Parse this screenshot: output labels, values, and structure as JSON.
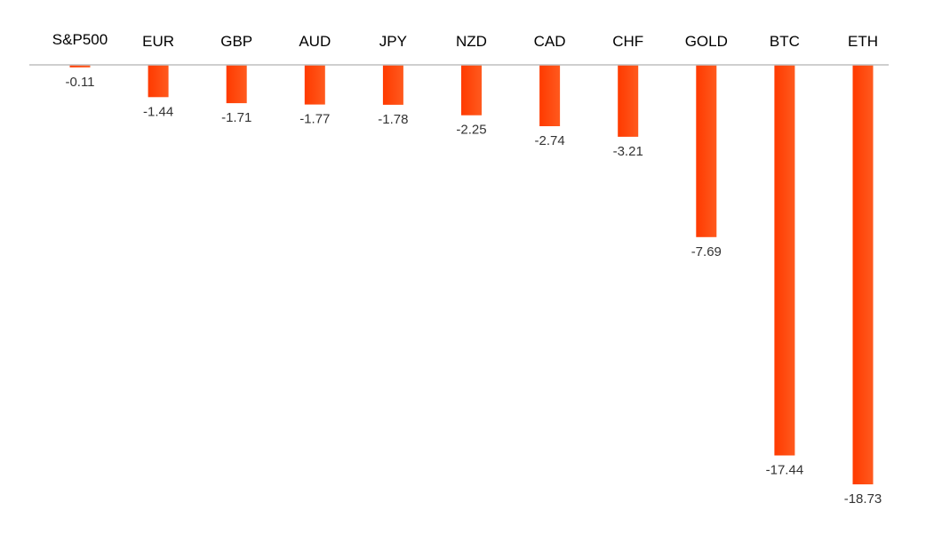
{
  "chart_data": {
    "type": "bar",
    "categories": [
      "S&P500",
      "EUR",
      "GBP",
      "AUD",
      "JPY",
      "NZD",
      "CAD",
      "CHF",
      "GOLD",
      "BTC",
      "ETH"
    ],
    "values": [
      -0.11,
      -1.44,
      -1.71,
      -1.77,
      -1.78,
      -2.25,
      -2.74,
      -3.21,
      -7.69,
      -17.44,
      -18.73
    ],
    "value_labels": [
      "-0.11",
      "-1.44",
      "-1.71",
      "-1.77",
      "-1.78",
      "-2.25",
      "-2.74",
      "-3.21",
      "-7.69",
      "-17.44",
      "-18.73"
    ],
    "title": "",
    "xlabel": "",
    "ylabel": "",
    "ylim": [
      -18.73,
      0
    ],
    "grid": false,
    "legend": "none",
    "colors": {
      "bar_top": "#ff3a00",
      "bar_bottom": "#ff5a1e",
      "baseline": "#bfbfbf"
    }
  }
}
